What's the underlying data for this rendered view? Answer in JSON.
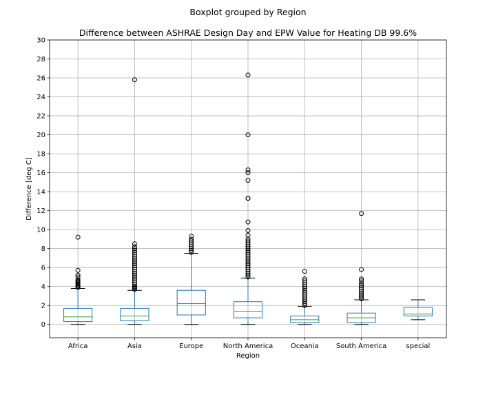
{
  "chart_data": {
    "type": "boxplot",
    "suptitle": "Boxplot grouped by Region",
    "title": "Difference between ASHRAE Design Day and EPW Value for Heating DB 99.6%",
    "xlabel": "Region",
    "ylabel": "Difference [deg C]",
    "ylim": [
      -1.4,
      30
    ],
    "yticks": [
      0,
      2,
      4,
      6,
      8,
      10,
      12,
      14,
      16,
      18,
      20,
      22,
      24,
      26,
      28,
      30
    ],
    "grid": true,
    "colors": {
      "box": "#1f77b4",
      "median": "#2ca02c",
      "whisker": "#1f77b4",
      "cap": "#000000",
      "grid": "#b0b0b0",
      "flier": "#000000"
    },
    "categories": [
      "Africa",
      "Asia",
      "Europe",
      "North America",
      "Oceania",
      "South America",
      "special"
    ],
    "boxes": [
      {
        "q1": 0.3,
        "median": 0.8,
        "q3": 1.7,
        "whislo": 0.0,
        "whishi": 3.8,
        "fliers": [
          3.9,
          4.0,
          4.1,
          4.2,
          4.3,
          4.4,
          4.5,
          4.6,
          4.7,
          5.0,
          5.2,
          5.7,
          9.2
        ]
      },
      {
        "q1": 0.4,
        "median": 0.9,
        "q3": 1.7,
        "whislo": 0.0,
        "whishi": 3.6,
        "fliers": [
          3.7,
          3.8,
          3.9,
          4.0,
          4.2,
          4.4,
          4.6,
          4.8,
          5.0,
          5.2,
          5.4,
          5.6,
          5.8,
          6.0,
          6.2,
          6.4,
          6.6,
          6.8,
          7.0,
          7.2,
          7.4,
          7.6,
          7.8,
          8.0,
          8.2,
          8.5,
          25.8
        ]
      },
      {
        "q1": 1.0,
        "median": 2.2,
        "q3": 3.6,
        "whislo": 0.0,
        "whishi": 7.5,
        "fliers": [
          7.6,
          7.8,
          8.0,
          8.2,
          8.4,
          8.6,
          8.8,
          9.0,
          9.3
        ]
      },
      {
        "q1": 0.7,
        "median": 1.4,
        "q3": 2.4,
        "whislo": 0.0,
        "whishi": 4.9,
        "fliers": [
          5.0,
          5.2,
          5.4,
          5.6,
          5.8,
          6.0,
          6.2,
          6.4,
          6.6,
          6.8,
          7.0,
          7.2,
          7.4,
          7.6,
          7.8,
          8.0,
          8.2,
          8.4,
          8.6,
          8.8,
          9.0,
          9.4,
          9.9,
          10.8,
          13.3,
          13.3,
          15.2,
          16.0,
          16.3,
          20.0,
          26.3
        ]
      },
      {
        "q1": 0.2,
        "median": 0.5,
        "q3": 0.9,
        "whislo": 0.0,
        "whishi": 1.9,
        "fliers": [
          2.0,
          2.2,
          2.4,
          2.6,
          2.8,
          3.0,
          3.2,
          3.4,
          3.6,
          3.8,
          4.0,
          4.2,
          4.4,
          4.6,
          4.8,
          5.6
        ]
      },
      {
        "q1": 0.2,
        "median": 0.7,
        "q3": 1.2,
        "whislo": 0.0,
        "whishi": 2.6,
        "fliers": [
          2.7,
          2.9,
          3.1,
          3.3,
          3.5,
          3.7,
          3.9,
          4.1,
          4.3,
          4.6,
          4.8,
          5.8,
          11.7
        ]
      },
      {
        "q1": 0.9,
        "median": 1.1,
        "q3": 1.8,
        "whislo": 0.5,
        "whishi": 2.6,
        "fliers": []
      }
    ]
  }
}
